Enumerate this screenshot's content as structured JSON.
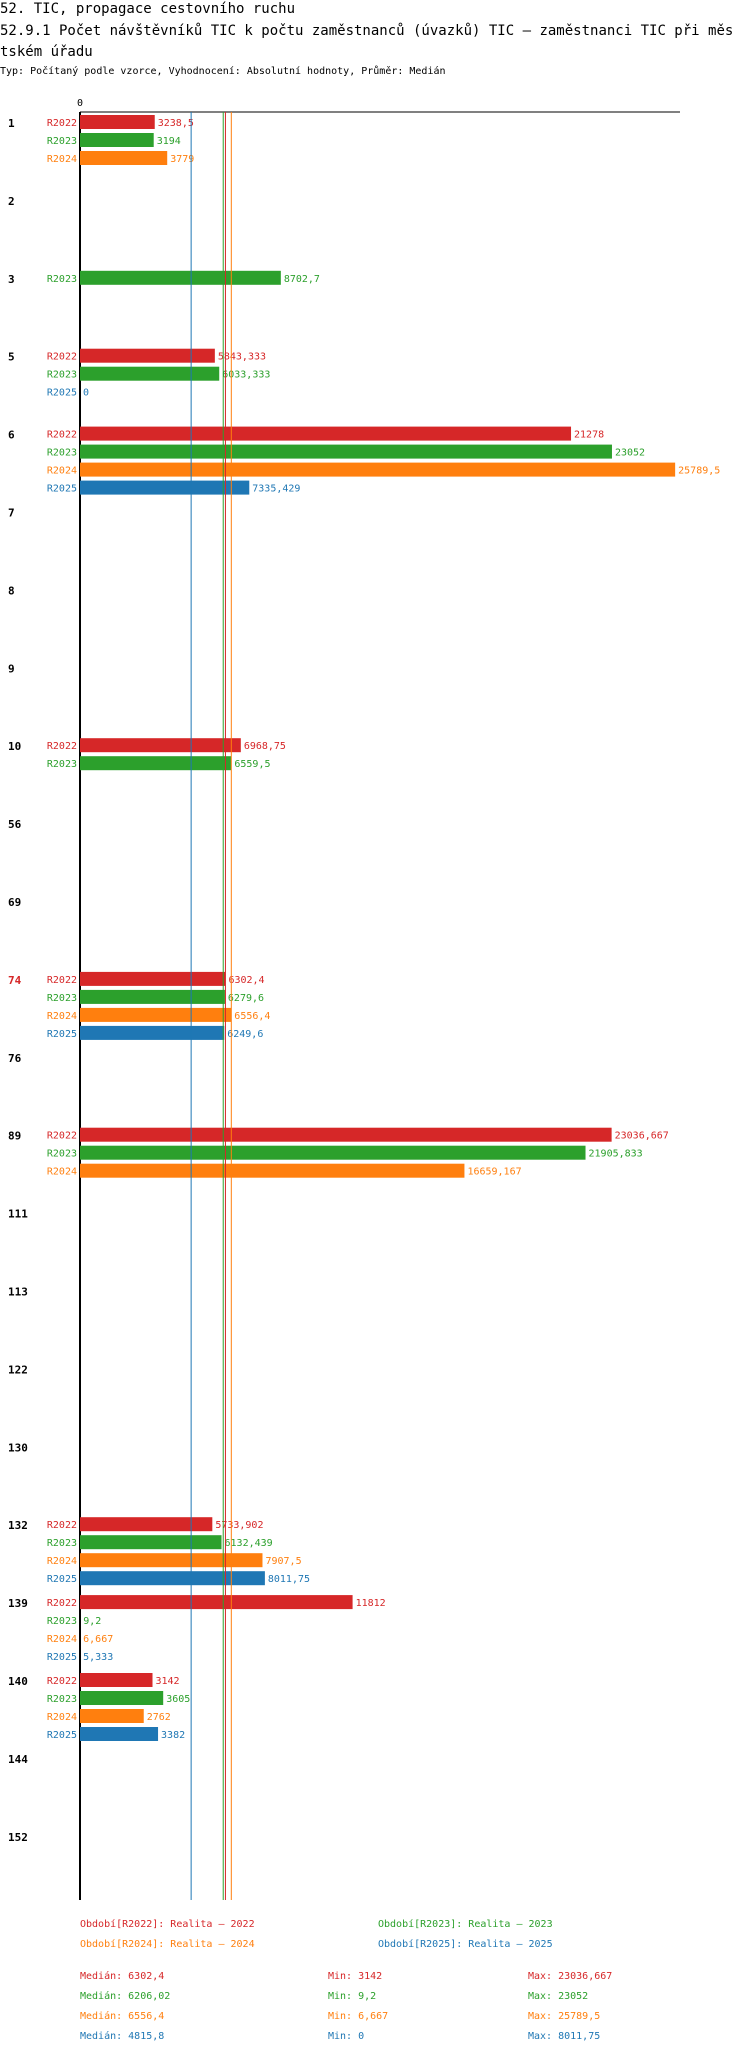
{
  "title1": "52. TIC, propagace cestovního ruchu",
  "title2": "52.9.1 Počet návštěvníků TIC k počtu zaměstnanců (úvazků) TIC – zaměstnanci TIC při městském úřadu",
  "subtitle": "Typ: Počítaný podle vzorce, Vyhodnocení: Absolutní hodnoty, Průměr: Medián",
  "colors": {
    "R2022": "#d62728",
    "R2023": "#2ca02c",
    "R2024": "#ff7f0e",
    "R2025": "#1f77b4"
  },
  "chart_data": {
    "type": "bar",
    "orientation": "horizontal",
    "axis_zero_label": "0",
    "x_max": 26000,
    "highlight_group": "74",
    "groups": [
      {
        "label": "1",
        "bars": [
          {
            "s": "R2022",
            "v": 3238.5,
            "t": "3238,5"
          },
          {
            "s": "R2023",
            "v": 3194,
            "t": "3194"
          },
          {
            "s": "R2024",
            "v": 3779,
            "t": "3779"
          }
        ]
      },
      {
        "label": "2",
        "bars": []
      },
      {
        "label": "3",
        "bars": [
          {
            "s": "R2023",
            "v": 8702.7,
            "t": "8702,7"
          }
        ]
      },
      {
        "label": "5",
        "bars": [
          {
            "s": "R2022",
            "v": 5843.333,
            "t": "5843,333"
          },
          {
            "s": "R2023",
            "v": 6033.333,
            "t": "6033,333"
          },
          {
            "s": "R2025",
            "v": 0,
            "t": "0"
          }
        ]
      },
      {
        "label": "6",
        "bars": [
          {
            "s": "R2022",
            "v": 21278,
            "t": "21278"
          },
          {
            "s": "R2023",
            "v": 23052,
            "t": "23052"
          },
          {
            "s": "R2024",
            "v": 25789.5,
            "t": "25789,5"
          },
          {
            "s": "R2025",
            "v": 7335.429,
            "t": "7335,429"
          }
        ]
      },
      {
        "label": "7",
        "bars": []
      },
      {
        "label": "8",
        "bars": []
      },
      {
        "label": "9",
        "bars": []
      },
      {
        "label": "10",
        "bars": [
          {
            "s": "R2022",
            "v": 6968.75,
            "t": "6968,75"
          },
          {
            "s": "R2023",
            "v": 6559.5,
            "t": "6559,5"
          }
        ]
      },
      {
        "label": "56",
        "bars": []
      },
      {
        "label": "69",
        "bars": []
      },
      {
        "label": "74",
        "bars": [
          {
            "s": "R2022",
            "v": 6302.4,
            "t": "6302,4"
          },
          {
            "s": "R2023",
            "v": 6279.6,
            "t": "6279,6"
          },
          {
            "s": "R2024",
            "v": 6556.4,
            "t": "6556,4"
          },
          {
            "s": "R2025",
            "v": 6249.6,
            "t": "6249,6"
          }
        ]
      },
      {
        "label": "76",
        "bars": []
      },
      {
        "label": "89",
        "bars": [
          {
            "s": "R2022",
            "v": 23036.667,
            "t": "23036,667"
          },
          {
            "s": "R2023",
            "v": 21905.833,
            "t": "21905,833"
          },
          {
            "s": "R2024",
            "v": 16659.167,
            "t": "16659,167"
          }
        ]
      },
      {
        "label": "111",
        "bars": []
      },
      {
        "label": "113",
        "bars": []
      },
      {
        "label": "122",
        "bars": []
      },
      {
        "label": "130",
        "bars": []
      },
      {
        "label": "132",
        "bars": [
          {
            "s": "R2022",
            "v": 5733.902,
            "t": "5733,902"
          },
          {
            "s": "R2023",
            "v": 6132.439,
            "t": "6132,439"
          },
          {
            "s": "R2024",
            "v": 7907.5,
            "t": "7907,5"
          },
          {
            "s": "R2025",
            "v": 8011.75,
            "t": "8011,75"
          }
        ]
      },
      {
        "label": "139",
        "bars": [
          {
            "s": "R2022",
            "v": 11812,
            "t": "11812"
          },
          {
            "s": "R2023",
            "v": 9.2,
            "t": "9,2"
          },
          {
            "s": "R2024",
            "v": 6.667,
            "t": "6,667"
          },
          {
            "s": "R2025",
            "v": 5.333,
            "t": "5,333"
          }
        ]
      },
      {
        "label": "140",
        "bars": [
          {
            "s": "R2022",
            "v": 3142,
            "t": "3142"
          },
          {
            "s": "R2023",
            "v": 3605,
            "t": "3605"
          },
          {
            "s": "R2024",
            "v": 2762,
            "t": "2762"
          },
          {
            "s": "R2025",
            "v": 3382,
            "t": "3382"
          }
        ]
      },
      {
        "label": "144",
        "bars": []
      },
      {
        "label": "152",
        "bars": []
      }
    ],
    "medians": [
      {
        "s": "R2023",
        "v": 6206.02
      },
      {
        "s": "R2022",
        "v": 6302.4
      },
      {
        "s": "R2024",
        "v": 6556.4
      },
      {
        "s": "R2025",
        "v": 4815.8
      }
    ],
    "legend": [
      {
        "s": "R2022",
        "text": "Období[R2022]: Realita – 2022"
      },
      {
        "s": "R2023",
        "text": "Období[R2023]: Realita – 2023"
      },
      {
        "s": "R2024",
        "text": "Období[R2024]: Realita – 2024"
      },
      {
        "s": "R2025",
        "text": "Období[R2025]: Realita – 2025"
      }
    ],
    "stats": [
      {
        "s": "R2022",
        "median": "Medián: 6302,4",
        "min": "Min: 3142",
        "max": "Max: 23036,667"
      },
      {
        "s": "R2023",
        "median": "Medián: 6206,02",
        "min": "Min: 9,2",
        "max": "Max: 23052"
      },
      {
        "s": "R2024",
        "median": "Medián: 6556,4",
        "min": "Min: 6,667",
        "max": "Max: 25789,5"
      },
      {
        "s": "R2025",
        "median": "Medián: 4815,8",
        "min": "Min: 0",
        "max": "Max: 8011,75"
      }
    ]
  }
}
